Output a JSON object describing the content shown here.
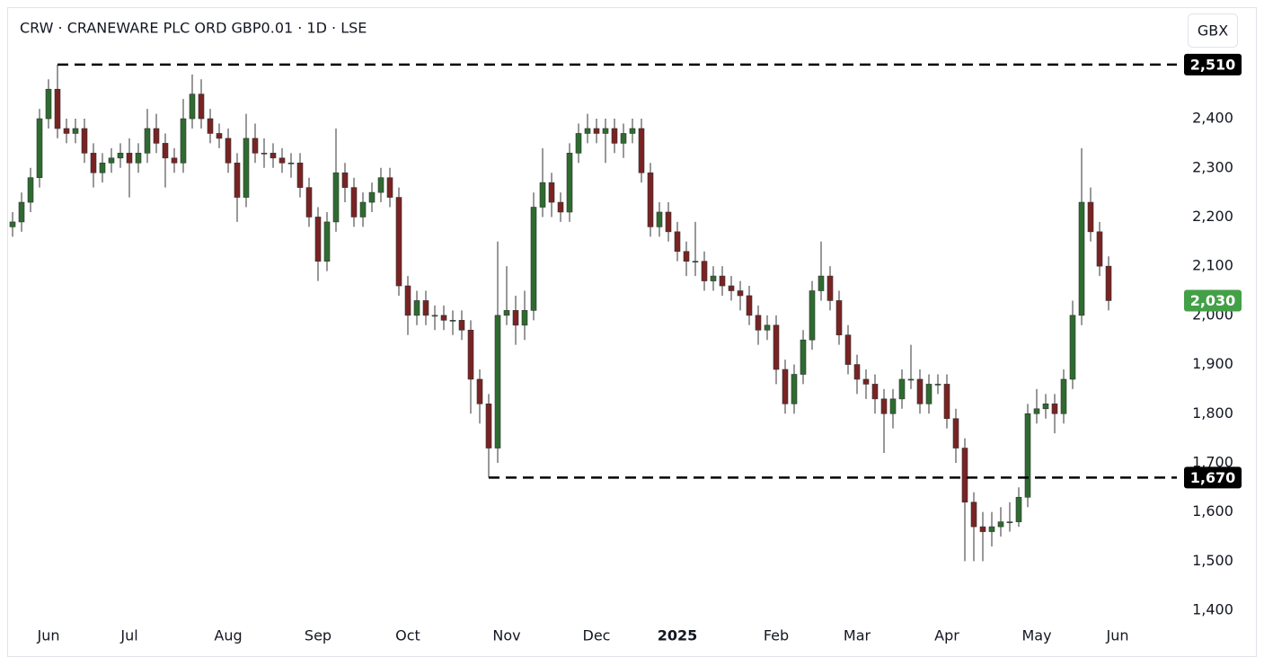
{
  "chart_data": {
    "type": "candlestick",
    "title": "CRW · CRANEWARE PLC ORD GBP0.01 · 1D · LSE",
    "currency": "GBX",
    "categories": [
      null,
      null,
      null,
      null,
      "Jun",
      null,
      null,
      null,
      null,
      null,
      null,
      null,
      null,
      "Jul",
      null,
      null,
      null,
      null,
      null,
      null,
      null,
      null,
      null,
      null,
      "Aug",
      null,
      null,
      null,
      null,
      null,
      null,
      null,
      null,
      null,
      "Sep",
      null,
      null,
      null,
      null,
      null,
      null,
      null,
      null,
      null,
      "Oct",
      null,
      null,
      null,
      null,
      null,
      null,
      null,
      null,
      null,
      null,
      "Nov",
      null,
      null,
      null,
      null,
      null,
      null,
      null,
      null,
      null,
      "Dec",
      null,
      null,
      null,
      null,
      null,
      null,
      null,
      null,
      "2025",
      null,
      null,
      null,
      null,
      null,
      null,
      null,
      null,
      null,
      null,
      "Feb",
      null,
      null,
      null,
      null,
      null,
      null,
      null,
      null,
      "Mar",
      null,
      null,
      null,
      null,
      null,
      null,
      null,
      null,
      null,
      "Apr",
      null,
      null,
      null,
      null,
      null,
      null,
      null,
      null,
      null,
      "May",
      null,
      null,
      null,
      null,
      null,
      null,
      null,
      null,
      "Jun"
    ],
    "bold_categories": [
      "2025"
    ],
    "open": [
      2180,
      2190,
      2230,
      2280,
      2400,
      2460,
      2380,
      2370,
      2380,
      2330,
      2290,
      2310,
      2320,
      2330,
      2310,
      2330,
      2380,
      2350,
      2320,
      2310,
      2400,
      2450,
      2400,
      2370,
      2360,
      2310,
      2240,
      2360,
      2330,
      2330,
      2320,
      2310,
      2310,
      2260,
      2200,
      2110,
      2190,
      2290,
      2260,
      2200,
      2230,
      2250,
      2280,
      2240,
      2060,
      2000,
      2030,
      2000,
      2000,
      1990,
      1990,
      1970,
      1870,
      1820,
      1730,
      2000,
      2010,
      1980,
      2010,
      2220,
      2270,
      2230,
      2210,
      2330,
      2370,
      2380,
      2370,
      2380,
      2350,
      2370,
      2380,
      2290,
      2180,
      2210,
      2170,
      2130,
      2110,
      2110,
      2070,
      2080,
      2060,
      2050,
      2040,
      2000,
      1970,
      1980,
      1890,
      1820,
      1880,
      1950,
      2050,
      2080,
      2030,
      1960,
      1900,
      1870,
      1860,
      1830,
      1800,
      1830,
      1870,
      1870,
      1820,
      1860,
      1860,
      1790,
      1730,
      1620,
      1570,
      1560,
      1570,
      1580,
      1580,
      1630,
      1800,
      1810,
      1820,
      1800,
      1870,
      2000,
      2230,
      2170,
      2100,
      null
    ],
    "high": [
      2210,
      2250,
      2300,
      2420,
      2480,
      2510,
      2400,
      2400,
      2400,
      2350,
      2330,
      2340,
      2350,
      2360,
      2350,
      2420,
      2410,
      2370,
      2340,
      2440,
      2490,
      2480,
      2420,
      2390,
      2380,
      2330,
      2410,
      2390,
      2360,
      2350,
      2340,
      2330,
      2330,
      2280,
      2220,
      2210,
      2380,
      2310,
      2280,
      2250,
      2270,
      2300,
      2300,
      2260,
      2080,
      2050,
      2050,
      2020,
      2020,
      2010,
      2010,
      1990,
      1890,
      1840,
      2150,
      2100,
      2040,
      2050,
      2250,
      2340,
      2290,
      2250,
      2350,
      2390,
      2410,
      2400,
      2400,
      2400,
      2390,
      2400,
      2400,
      2310,
      2230,
      2230,
      2190,
      2150,
      2190,
      2130,
      2100,
      2100,
      2080,
      2070,
      2060,
      2020,
      2000,
      2000,
      1910,
      1900,
      1970,
      2070,
      2150,
      2100,
      2050,
      1980,
      1920,
      1890,
      1880,
      1850,
      1850,
      1890,
      1940,
      1890,
      1880,
      1880,
      1880,
      1810,
      1750,
      1640,
      1600,
      1600,
      1610,
      1620,
      1650,
      1820,
      1850,
      1840,
      1840,
      1890,
      2030,
      2340,
      2260,
      2190,
      2120,
      null
    ],
    "low": [
      2160,
      2170,
      2210,
      2260,
      2380,
      2360,
      2350,
      2350,
      2310,
      2260,
      2270,
      2290,
      2300,
      2240,
      2290,
      2310,
      2330,
      2260,
      2290,
      2290,
      2380,
      2380,
      2350,
      2340,
      2290,
      2190,
      2220,
      2310,
      2300,
      2300,
      2290,
      2280,
      2240,
      2180,
      2070,
      2090,
      2170,
      2230,
      2180,
      2180,
      2210,
      2230,
      2220,
      2040,
      1960,
      1980,
      1980,
      1970,
      1970,
      1960,
      1950,
      1800,
      1780,
      1670,
      1700,
      1980,
      1940,
      1950,
      1990,
      2200,
      2200,
      2190,
      2190,
      2310,
      2350,
      2350,
      2310,
      2330,
      2320,
      2350,
      2270,
      2160,
      2160,
      2150,
      2110,
      2080,
      2080,
      2050,
      2050,
      2040,
      2030,
      2010,
      1980,
      1940,
      1950,
      1860,
      1800,
      1800,
      1860,
      1930,
      2030,
      2010,
      1940,
      1880,
      1840,
      1830,
      1800,
      1720,
      1770,
      1810,
      1850,
      1800,
      1800,
      1840,
      1770,
      1700,
      1500,
      1500,
      1500,
      1530,
      1550,
      1560,
      1570,
      1610,
      1780,
      1790,
      1760,
      1780,
      1850,
      1980,
      2150,
      2080,
      2010,
      null
    ],
    "close": [
      2190,
      2230,
      2280,
      2400,
      2460,
      2380,
      2370,
      2380,
      2330,
      2290,
      2310,
      2320,
      2330,
      2310,
      2330,
      2380,
      2350,
      2320,
      2310,
      2400,
      2450,
      2400,
      2370,
      2360,
      2310,
      2240,
      2360,
      2330,
      2330,
      2320,
      2310,
      2310,
      2260,
      2200,
      2110,
      2190,
      2290,
      2260,
      2200,
      2230,
      2250,
      2280,
      2240,
      2060,
      2000,
      2030,
      2000,
      2000,
      1990,
      1990,
      1970,
      1870,
      1820,
      1730,
      2000,
      2010,
      1980,
      2010,
      2220,
      2270,
      2230,
      2210,
      2330,
      2370,
      2380,
      2370,
      2380,
      2350,
      2370,
      2380,
      2290,
      2180,
      2210,
      2170,
      2130,
      2110,
      2110,
      2070,
      2080,
      2060,
      2050,
      2040,
      2000,
      1970,
      1980,
      1890,
      1820,
      1880,
      1950,
      2050,
      2080,
      2030,
      1960,
      1900,
      1870,
      1860,
      1830,
      1800,
      1830,
      1870,
      1870,
      1820,
      1860,
      1860,
      1790,
      1730,
      1620,
      1570,
      1560,
      1570,
      1580,
      1580,
      1630,
      1800,
      1810,
      1820,
      1800,
      1870,
      2000,
      2230,
      2170,
      2100,
      2030,
      null
    ],
    "up_color": "#2e6b30",
    "down_color": "#7a2323",
    "wick_color": "#333333",
    "levels": [
      {
        "value": 2510,
        "label": "2,510"
      },
      {
        "value": 1670,
        "label": "1,670"
      }
    ],
    "level_color": "#000000",
    "last_price": {
      "value": 2030,
      "label": "2,030"
    },
    "last_price_color": "#43a047",
    "ylim": [
      1380,
      2550
    ],
    "yticks": [
      {
        "value": 1400,
        "label": "1,400"
      },
      {
        "value": 1500,
        "label": "1,500"
      },
      {
        "value": 1600,
        "label": "1,600"
      },
      {
        "value": 1700,
        "label": "1,700"
      },
      {
        "value": 1800,
        "label": "1,800"
      },
      {
        "value": 1900,
        "label": "1,900"
      },
      {
        "value": 2000,
        "label": "2,000"
      },
      {
        "value": 2100,
        "label": "2,100"
      },
      {
        "value": 2200,
        "label": "2,200"
      },
      {
        "value": 2300,
        "label": "2,300"
      },
      {
        "value": 2400,
        "label": "2,400"
      }
    ],
    "grid": false
  }
}
